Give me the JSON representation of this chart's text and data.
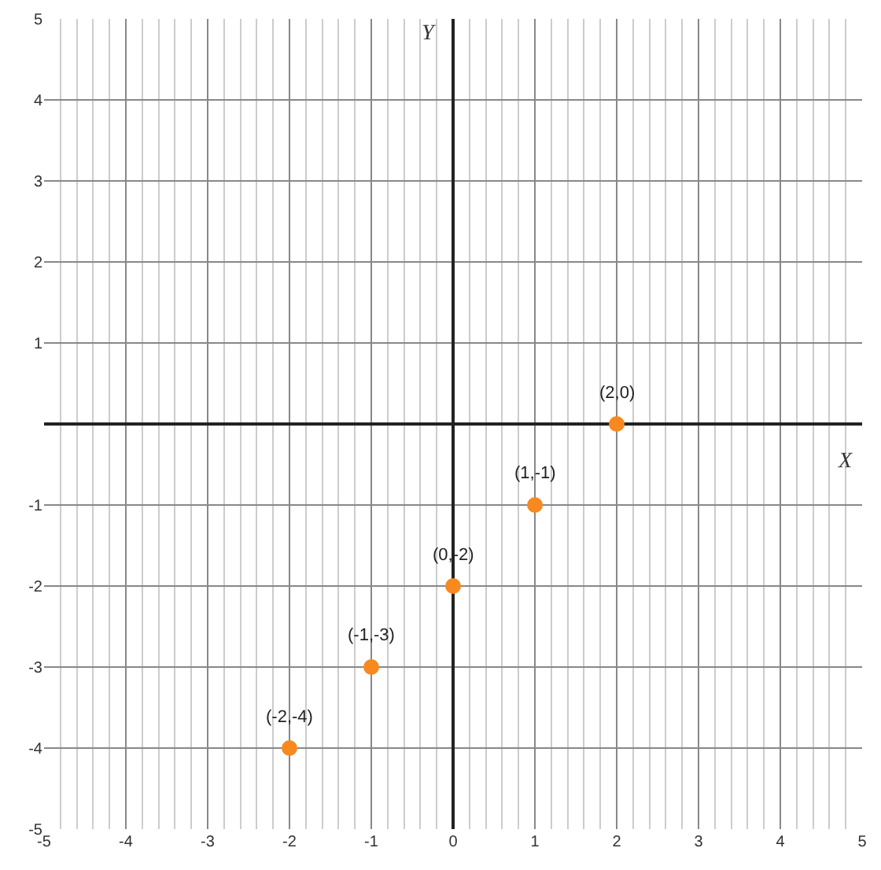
{
  "chart_data": {
    "type": "scatter",
    "xlabel": "X",
    "ylabel": "Y",
    "x": [
      -2,
      -1,
      0,
      1,
      2
    ],
    "values": [
      -4,
      -3,
      -2,
      -1,
      0
    ],
    "color": "#f7891f",
    "marker": "circle",
    "annotations": [
      {
        "text": "(-2,-4)",
        "x": -2,
        "y": -4
      },
      {
        "text": "(-1,-3)",
        "x": -1,
        "y": -3
      },
      {
        "text": "(0,-2)",
        "x": 0,
        "y": -2
      },
      {
        "text": "(1,-1)",
        "x": 1,
        "y": -1
      },
      {
        "text": "(2,0)",
        "x": 2,
        "y": 0
      }
    ],
    "xlim": [
      -5,
      5
    ],
    "ylim": [
      -5,
      5
    ],
    "xticks": [
      -5,
      -4,
      -3,
      -2,
      -1,
      0,
      1,
      2,
      3,
      4,
      5
    ],
    "yticks": [
      -5,
      -4,
      -3,
      -2,
      -1,
      1,
      2,
      3,
      4,
      5
    ],
    "grid": true
  }
}
